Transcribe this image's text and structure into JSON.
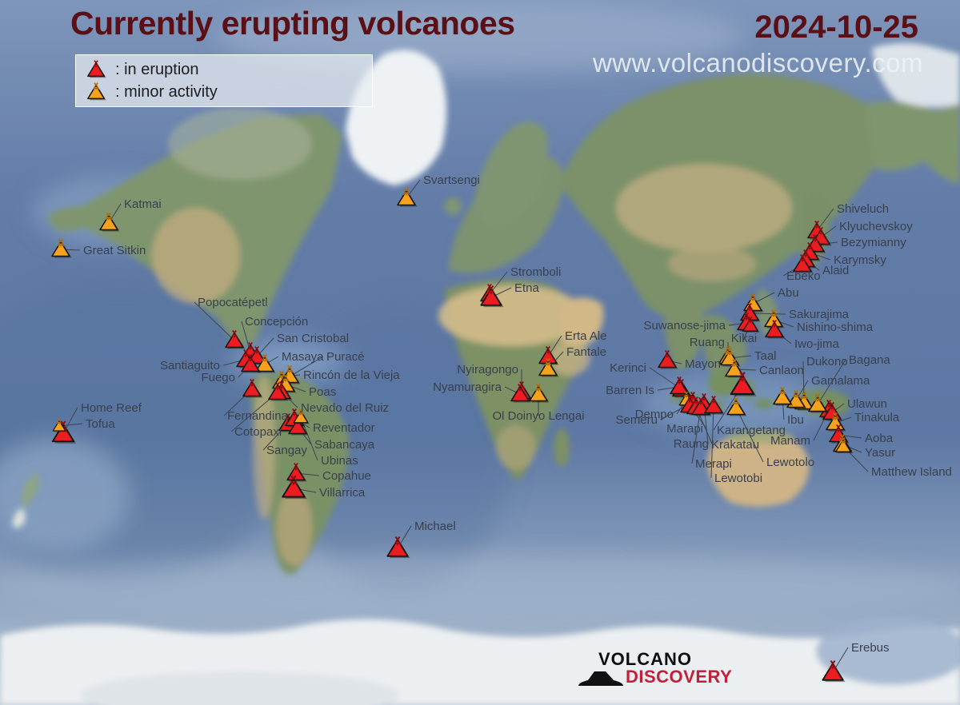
{
  "header": {
    "title": "Currently erupting volcanoes",
    "date": "2024-10-25",
    "watermark": "www.volcanodiscovery.com"
  },
  "legend": {
    "items": [
      {
        "status": "eruption",
        "icon": "red-volcano-icon",
        "label": ":  in eruption"
      },
      {
        "status": "minor",
        "icon": "orange-volcano-icon",
        "label": ":  minor activity"
      }
    ]
  },
  "logo": {
    "line1": "VOLCANO",
    "line2": "DISCOVERY"
  },
  "colors": {
    "title": "#5a1016",
    "eruption": "#ec1c20",
    "eruption_crater": "#8f0d12",
    "minor": "#f7a21c",
    "minor_crater": "#b36b00",
    "label": "#39404c",
    "leader_line": "#3d444f",
    "logo_red": "#c41f39"
  },
  "volcanoes": [
    {
      "name": "Katmai",
      "status": "minor",
      "marker": [
        136,
        279
      ],
      "label": [
        155,
        260
      ],
      "anchor": "start"
    },
    {
      "name": "Great Sitkin",
      "status": "minor",
      "marker": [
        76,
        312
      ],
      "label": [
        104,
        318
      ],
      "anchor": "start"
    },
    {
      "name": "Svartsengi",
      "status": "minor",
      "marker": [
        508,
        248
      ],
      "label": [
        529,
        230
      ],
      "anchor": "start"
    },
    {
      "name": "Home Reef",
      "status": "eruption",
      "marker": [
        79,
        542
      ],
      "label": [
        101,
        515
      ],
      "anchor": "start",
      "size": 1.2
    },
    {
      "name": "Tofua",
      "status": "minor",
      "marker": [
        74,
        533
      ],
      "label": [
        107,
        535
      ],
      "anchor": "start",
      "size": 0.7
    },
    {
      "name": "Popocatépetl",
      "status": "eruption",
      "marker": [
        293,
        426
      ],
      "label": [
        247,
        383
      ],
      "anchor": "start"
    },
    {
      "name": "Concepción",
      "status": "eruption",
      "marker": [
        313,
        441
      ],
      "label": [
        306,
        407
      ],
      "anchor": "start"
    },
    {
      "name": "San Cristobal",
      "status": "eruption",
      "marker": [
        321,
        446
      ],
      "label": [
        346,
        428
      ],
      "anchor": "start"
    },
    {
      "name": "Masaya",
      "status": "minor",
      "marker": [
        331,
        456
      ],
      "label": [
        352,
        451
      ],
      "anchor": "start"
    },
    {
      "name": "Puracé",
      "status": "minor",
      "marker": [
        352,
        477
      ],
      "label": [
        408,
        451
      ],
      "anchor": "start"
    },
    {
      "name": "Santiaguito",
      "status": "eruption",
      "marker": [
        307,
        450
      ],
      "label": [
        275,
        462
      ],
      "anchor": "end"
    },
    {
      "name": "Fuego",
      "status": "eruption",
      "marker": [
        313,
        456
      ],
      "label": [
        294,
        477
      ],
      "anchor": "end"
    },
    {
      "name": "Rincón de la Vieja",
      "status": "minor",
      "marker": [
        362,
        470
      ],
      "label": [
        379,
        474
      ],
      "anchor": "start"
    },
    {
      "name": "Poas",
      "status": "minor",
      "marker": [
        357,
        481
      ],
      "label": [
        386,
        495
      ],
      "anchor": "start"
    },
    {
      "name": "Nevado del Ruiz",
      "status": "eruption",
      "marker": [
        352,
        490
      ],
      "label": [
        376,
        515
      ],
      "anchor": "start"
    },
    {
      "name": "Fernandina",
      "status": "eruption",
      "marker": [
        315,
        487
      ],
      "label": [
        284,
        525
      ],
      "anchor": "start"
    },
    {
      "name": "Cotopaxi",
      "status": "eruption",
      "marker": [
        347,
        491
      ],
      "label": [
        293,
        545
      ],
      "anchor": "start"
    },
    {
      "name": "Sangay",
      "status": "eruption",
      "marker": [
        360,
        530
      ],
      "label": [
        333,
        568
      ],
      "anchor": "start"
    },
    {
      "name": "Reventador",
      "status": "eruption",
      "marker": [
        368,
        524
      ],
      "label": [
        391,
        540
      ],
      "anchor": "start"
    },
    {
      "name": "Sabancaya",
      "status": "eruption",
      "marker": [
        372,
        534
      ],
      "label": [
        393,
        561
      ],
      "anchor": "start"
    },
    {
      "name": "Ubinas",
      "status": "minor",
      "marker": [
        376,
        522
      ],
      "label": [
        401,
        581
      ],
      "anchor": "start",
      "size": 0.8
    },
    {
      "name": "Copahue",
      "status": "eruption",
      "marker": [
        370,
        592
      ],
      "label": [
        403,
        600
      ],
      "anchor": "start"
    },
    {
      "name": "Villarrica",
      "status": "eruption",
      "marker": [
        367,
        611
      ],
      "label": [
        399,
        621
      ],
      "anchor": "start",
      "size": 1.25
    },
    {
      "name": "Michael",
      "status": "eruption",
      "marker": [
        497,
        686
      ],
      "label": [
        518,
        663
      ],
      "anchor": "start",
      "size": 1.15
    },
    {
      "name": "Stromboli",
      "status": "eruption",
      "marker": [
        612,
        368
      ],
      "label": [
        638,
        345
      ],
      "anchor": "start"
    },
    {
      "name": "Etna",
      "status": "eruption",
      "marker": [
        614,
        372
      ],
      "label": [
        643,
        365
      ],
      "anchor": "start",
      "size": 1.15
    },
    {
      "name": "Erta Ale",
      "status": "eruption",
      "marker": [
        685,
        446
      ],
      "label": [
        706,
        425
      ],
      "anchor": "start"
    },
    {
      "name": "Fantale",
      "status": "minor",
      "marker": [
        685,
        461
      ],
      "label": [
        708,
        445
      ],
      "anchor": "start"
    },
    {
      "name": "Nyiragongo",
      "status": "eruption",
      "marker": [
        652,
        490
      ],
      "label": [
        648,
        467
      ],
      "anchor": "end"
    },
    {
      "name": "Nyamuragira",
      "status": "eruption",
      "marker": [
        650,
        493
      ],
      "label": [
        627,
        489
      ],
      "anchor": "end"
    },
    {
      "name": "Ol Doinyo Lengai",
      "status": "minor",
      "marker": [
        673,
        493
      ],
      "label": [
        673,
        525
      ],
      "anchor": "middle"
    },
    {
      "name": "Shiveluch",
      "status": "eruption",
      "marker": [
        1021,
        289
      ],
      "label": [
        1046,
        266
      ],
      "anchor": "start"
    },
    {
      "name": "Klyuchevskoy",
      "status": "eruption",
      "marker": [
        1026,
        297
      ],
      "label": [
        1049,
        288
      ],
      "anchor": "start"
    },
    {
      "name": "Bezymianny",
      "status": "eruption",
      "marker": [
        1019,
        306
      ],
      "label": [
        1051,
        308
      ],
      "anchor": "start"
    },
    {
      "name": "Karymsky",
      "status": "eruption",
      "marker": [
        1012,
        316
      ],
      "label": [
        1042,
        330
      ],
      "anchor": "start"
    },
    {
      "name": "Alaid",
      "status": "eruption",
      "marker": [
        1007,
        325
      ],
      "label": [
        1028,
        343
      ],
      "anchor": "start"
    },
    {
      "name": "Ebeko",
      "status": "eruption",
      "marker": [
        1003,
        331
      ],
      "label": [
        983,
        350
      ],
      "anchor": "start"
    },
    {
      "name": "Abu",
      "status": "minor",
      "marker": [
        941,
        380
      ],
      "label": [
        972,
        371
      ],
      "anchor": "start"
    },
    {
      "name": "Sakurajima",
      "status": "eruption",
      "marker": [
        937,
        392
      ],
      "label": [
        986,
        398
      ],
      "anchor": "start"
    },
    {
      "name": "Suwanose-jima",
      "status": "eruption",
      "marker": [
        933,
        404
      ],
      "label": [
        907,
        412
      ],
      "anchor": "end"
    },
    {
      "name": "Kikai",
      "status": "eruption",
      "marker": [
        938,
        407
      ],
      "label": [
        930,
        428
      ],
      "anchor": "middle",
      "size": 0.85
    },
    {
      "name": "Nishino-shima",
      "status": "minor",
      "marker": [
        967,
        400
      ],
      "label": [
        996,
        414
      ],
      "anchor": "start"
    },
    {
      "name": "Iwo-jima",
      "status": "eruption",
      "marker": [
        968,
        413
      ],
      "label": [
        993,
        435
      ],
      "anchor": "start"
    },
    {
      "name": "Ruang",
      "status": "minor",
      "marker": [
        910,
        446
      ],
      "label": [
        906,
        433
      ],
      "anchor": "end"
    },
    {
      "name": "Mayon",
      "status": "eruption",
      "marker": [
        834,
        451
      ],
      "label": [
        856,
        460
      ],
      "anchor": "start"
    },
    {
      "name": "Taal",
      "status": "minor",
      "marker": [
        912,
        448
      ],
      "label": [
        943,
        450
      ],
      "anchor": "start"
    },
    {
      "name": "Canlaon",
      "status": "minor",
      "marker": [
        918,
        462
      ],
      "label": [
        949,
        468
      ],
      "anchor": "start"
    },
    {
      "name": "Kerinci",
      "status": "eruption",
      "marker": [
        852,
        487
      ],
      "label": [
        808,
        465
      ],
      "anchor": "end"
    },
    {
      "name": "Barren Is",
      "status": "eruption",
      "marker": [
        849,
        484
      ],
      "label": [
        818,
        493
      ],
      "anchor": "end"
    },
    {
      "name": "Dempo",
      "status": "minor",
      "marker": [
        858,
        500
      ],
      "label": [
        842,
        523
      ],
      "anchor": "end",
      "size": 0.8
    },
    {
      "name": "Semeru",
      "status": "eruption",
      "marker": [
        866,
        503
      ],
      "label": [
        822,
        530
      ],
      "anchor": "end"
    },
    {
      "name": "Marapi",
      "status": "eruption",
      "marker": [
        862,
        507
      ],
      "label": [
        879,
        541
      ],
      "anchor": "end"
    },
    {
      "name": "Raung",
      "status": "eruption",
      "marker": [
        870,
        509
      ],
      "label": [
        886,
        560
      ],
      "anchor": "end"
    },
    {
      "name": "Krakatau",
      "status": "eruption",
      "marker": [
        880,
        505
      ],
      "label": [
        889,
        561
      ],
      "anchor": "start"
    },
    {
      "name": "Merapi",
      "status": "eruption",
      "marker": [
        876,
        510
      ],
      "label": [
        869,
        585
      ],
      "anchor": "start"
    },
    {
      "name": "Lewotobi",
      "status": "eruption",
      "marker": [
        892,
        508
      ],
      "label": [
        893,
        603
      ],
      "anchor": "start"
    },
    {
      "name": "Karangetang",
      "status": "eruption",
      "marker": [
        928,
        482
      ],
      "label": [
        896,
        543
      ],
      "anchor": "start",
      "size": 1.3
    },
    {
      "name": "Lewotolo",
      "status": "minor",
      "marker": [
        920,
        510
      ],
      "label": [
        958,
        583
      ],
      "anchor": "start"
    },
    {
      "name": "Manam",
      "status": "eruption",
      "marker": [
        1036,
        513
      ],
      "label": [
        1013,
        556
      ],
      "anchor": "end"
    },
    {
      "name": "Dukono",
      "status": "minor",
      "marker": [
        1005,
        503
      ],
      "label": [
        1008,
        457
      ],
      "anchor": "start"
    },
    {
      "name": "Gamalama",
      "status": "minor",
      "marker": [
        995,
        501
      ],
      "label": [
        1014,
        481
      ],
      "anchor": "start"
    },
    {
      "name": "Ibu",
      "status": "minor",
      "marker": [
        978,
        497
      ],
      "label": [
        984,
        530
      ],
      "anchor": "start"
    },
    {
      "name": "Bagana",
      "status": "minor",
      "marker": [
        1022,
        506
      ],
      "label": [
        1061,
        455
      ],
      "anchor": "start"
    },
    {
      "name": "Ulawun",
      "status": "eruption",
      "marker": [
        1040,
        516
      ],
      "label": [
        1059,
        510
      ],
      "anchor": "start"
    },
    {
      "name": "Tinakula",
      "status": "minor",
      "marker": [
        1044,
        529
      ],
      "label": [
        1068,
        527
      ],
      "anchor": "start"
    },
    {
      "name": "Aoba",
      "status": "eruption",
      "marker": [
        1048,
        544
      ],
      "label": [
        1081,
        553
      ],
      "anchor": "start"
    },
    {
      "name": "Yasur",
      "status": "minor",
      "marker": [
        1053,
        556
      ],
      "label": [
        1081,
        571
      ],
      "anchor": "start"
    },
    {
      "name": "Matthew Island",
      "status": "minor",
      "marker": [
        1054,
        558
      ],
      "label": [
        1089,
        595
      ],
      "anchor": "start",
      "size": 0.85
    },
    {
      "name": "Erebus",
      "status": "eruption",
      "marker": [
        1041,
        841
      ],
      "label": [
        1064,
        815
      ],
      "anchor": "start",
      "size": 1.15
    }
  ]
}
